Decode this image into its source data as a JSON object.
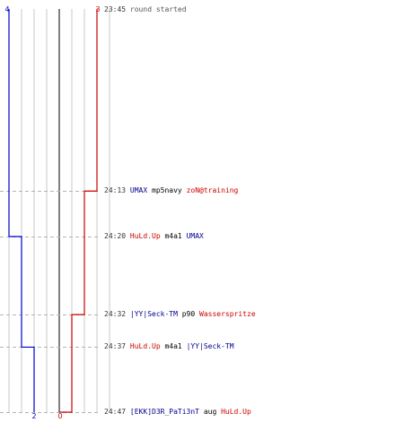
{
  "colors": {
    "blue": "#0000cc",
    "red": "#cc0000",
    "grid": "#c8c8c8",
    "center": "#808080",
    "dash": "#b4b4b4"
  },
  "chart_data": {
    "type": "line",
    "team_counts": {
      "blue": {
        "start": "4",
        "end": "2"
      },
      "red": {
        "start": "3",
        "end": "0"
      }
    },
    "series": [
      {
        "team": "blue",
        "x": [
          "23:45",
          "24:20",
          "24:37",
          "24:47"
        ],
        "y": [
          4,
          3,
          2,
          2
        ]
      },
      {
        "team": "red",
        "x": [
          "23:45",
          "24:13",
          "24:32",
          "24:47"
        ],
        "y": [
          3,
          2,
          1,
          0
        ]
      }
    ]
  },
  "events": [
    {
      "time": "23:45",
      "parts": [
        {
          "text": "round started",
          "role": "text"
        }
      ]
    },
    {
      "time": "24:13",
      "parts": [
        {
          "text": "UMAX",
          "role": "blue"
        },
        {
          "text": "mp5navy",
          "role": "weapon"
        },
        {
          "text": "zoN@training",
          "role": "red"
        }
      ]
    },
    {
      "time": "24:20",
      "parts": [
        {
          "text": "HuLd.Up",
          "role": "red"
        },
        {
          "text": "m4a1",
          "role": "weapon"
        },
        {
          "text": "UMAX",
          "role": "blue"
        }
      ]
    },
    {
      "time": "24:32",
      "parts": [
        {
          "text": "|YY|Seck-TM",
          "role": "blue"
        },
        {
          "text": "p90",
          "role": "weapon"
        },
        {
          "text": "Wasserspritze",
          "role": "red"
        }
      ]
    },
    {
      "time": "24:37",
      "parts": [
        {
          "text": "HuLd.Up",
          "role": "red"
        },
        {
          "text": "m4a1",
          "role": "weapon"
        },
        {
          "text": "|YY|Seck-TM",
          "role": "blue"
        }
      ]
    },
    {
      "time": "24:47",
      "parts": [
        {
          "text": "[EKK]D3R_PaTi3nT",
          "role": "blue"
        },
        {
          "text": "aug",
          "role": "weapon"
        },
        {
          "text": "HuLd.Up",
          "role": "red"
        }
      ]
    }
  ]
}
